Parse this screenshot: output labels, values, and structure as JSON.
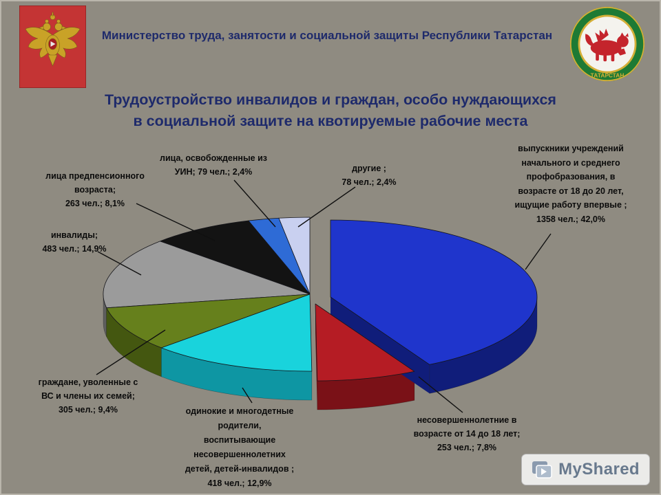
{
  "colors": {
    "bg": "#8f8b81",
    "navy": "#1e2a6b"
  },
  "header": {
    "text": "Министерство труда, занятости и социальной защиты Республики Татарстан"
  },
  "title": {
    "line1": "Трудоустройство инвалидов и граждан, особо нуждающихся",
    "line2": "в социальной защите на квотируемые рабочие места"
  },
  "watermark": {
    "text": "MyShared"
  },
  "emblems": {
    "left": "Герб Российской Федерации",
    "right": "Герб Республики Татарстан",
    "right_ring_text": "ТАТАРСТАН"
  },
  "chart_data": {
    "type": "pie",
    "title": "Трудоустройство инвалидов и граждан, особо нуждающихся в социальной защите на квотируемые рабочие места",
    "unit": "чел.",
    "legend_position": "callout-labels",
    "slices": [
      {
        "name": "graduates-18-20",
        "label": "выпускники учреждений начального и среднего профобразования, в возрасте от 18 до 20 лет, ищущие работу впервые",
        "label_lines": [
          "выпускники учреждений",
          "начального и среднего",
          "профобразования, в",
          "возрасте от 18 до 20 лет,",
          "ищущие работу впервые ;",
          "1358 чел.; 42,0%"
        ],
        "value": 1358,
        "pct": 42.0,
        "color": "#1f35cc",
        "side": "#101d7a"
      },
      {
        "name": "minors-14-18",
        "label": "несовершеннолетние в возрасте от 14 до 18 лет",
        "label_lines": [
          "несовершеннолетние в",
          "возрасте от 14 до 18 лет;",
          "253 чел.; 7,8%"
        ],
        "value": 253,
        "pct": 7.8,
        "color": "#b51c24",
        "side": "#7a1117"
      },
      {
        "name": "single-and-large-families",
        "label": "одинокие и многодетные родители, воспитывающие несовершеннолетних детей, детей-инвалидов",
        "label_lines": [
          "одинокие и многодетные",
          "родители,",
          "воспитывающие",
          "несовершеннолетних",
          "детей, детей-инвалидов ;",
          "418 чел.; 12,9%"
        ],
        "value": 418,
        "pct": 12.9,
        "color": "#19d3dc",
        "side": "#0e96a3"
      },
      {
        "name": "discharged-military",
        "label": "граждане, уволенные с ВС и члены их семей",
        "label_lines": [
          "граждане, уволенные с",
          "ВС и члены их семей;",
          "305 чел.; 9,4%"
        ],
        "value": 305,
        "pct": 9.4,
        "color": "#66801c",
        "side": "#445710"
      },
      {
        "name": "disabled",
        "label": "инвалиды",
        "label_lines": [
          "инвалиды;",
          "483 чел.; 14,9%"
        ],
        "value": 483,
        "pct": 14.9,
        "color": "#9b9b9b",
        "side": "#5e5e5e"
      },
      {
        "name": "pre-retirement",
        "label": "лица предпенсионного возраста",
        "label_lines": [
          "лица предпенсионного",
          "возраста;",
          "263 чел.; 8,1%"
        ],
        "value": 263,
        "pct": 8.1,
        "color": "#131313",
        "side": "#000000"
      },
      {
        "name": "released-from-uin",
        "label": "лица, освобожденные из УИН",
        "label_lines": [
          "лица, освобожденные из",
          "УИН; 79 чел.; 2,4%"
        ],
        "value": 79,
        "pct": 2.4,
        "color": "#2e6bd6",
        "side": "#1c4491"
      },
      {
        "name": "others",
        "label": "другие",
        "label_lines": [
          "другие ;",
          "78 чел.; 2,4%"
        ],
        "value": 78,
        "pct": 2.4,
        "color": "#c9d0f0",
        "side": "#99a2c9"
      }
    ]
  }
}
